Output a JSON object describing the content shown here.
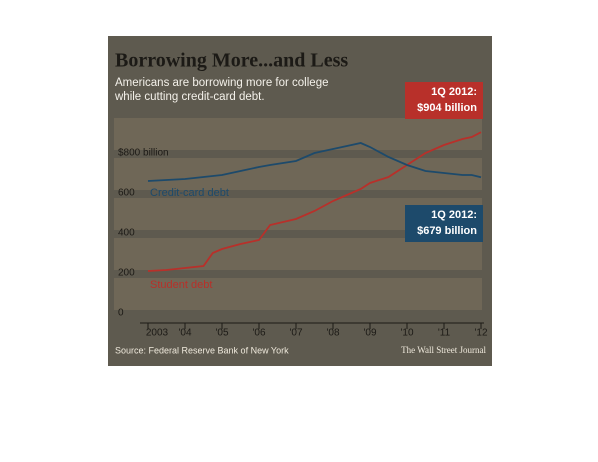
{
  "chart_data": {
    "type": "line",
    "title": "Borrowing More...and Less",
    "subtitle": "Americans are borrowing more for college while cutting credit-card debt.",
    "x": [
      2003,
      2003.5,
      2004,
      2004.5,
      2004.75,
      2005,
      2005.5,
      2006,
      2006.3,
      2007,
      2007.5,
      2008,
      2008.5,
      2008.75,
      2009,
      2009.5,
      2010,
      2010.5,
      2011,
      2011.5,
      2011.75,
      2012
    ],
    "series": [
      {
        "name": "Student debt",
        "color": "#b8302a",
        "values": [
          210,
          215,
          225,
          235,
          300,
          320,
          345,
          365,
          440,
          470,
          510,
          560,
          600,
          620,
          650,
          680,
          740,
          800,
          840,
          870,
          880,
          904
        ]
      },
      {
        "name": "Credit-card debt",
        "color": "#1d4a6b",
        "values": [
          660,
          665,
          670,
          680,
          685,
          690,
          710,
          730,
          740,
          760,
          800,
          820,
          840,
          850,
          830,
          780,
          740,
          710,
          700,
          690,
          690,
          679
        ]
      }
    ],
    "xlim": [
      2003,
      2012
    ],
    "xticks": [
      {
        "value": 2003,
        "label": "2003"
      },
      {
        "value": 2004,
        "label": "'04"
      },
      {
        "value": 2005,
        "label": "'05"
      },
      {
        "value": 2006,
        "label": "'06"
      },
      {
        "value": 2007,
        "label": "'07"
      },
      {
        "value": 2008,
        "label": "'08"
      },
      {
        "value": 2009,
        "label": "'09"
      },
      {
        "value": 2010,
        "label": "'10"
      },
      {
        "value": 2011,
        "label": "'11"
      },
      {
        "value": 2012,
        "label": "'12"
      }
    ],
    "ylim": [
      0,
      950
    ],
    "yticks": [
      0,
      200,
      400,
      600,
      {
        "value": 800,
        "label": "$800 billion"
      }
    ],
    "annotations": [
      {
        "lines": [
          "1Q 2012:",
          "$904 billion"
        ],
        "color": "#b8302a"
      },
      {
        "lines": [
          "1Q 2012:",
          "$679 billion"
        ],
        "color": "#1d4a6b"
      }
    ],
    "source": "Source: Federal Reserve Bank of New York",
    "credit": "The Wall Street Journal"
  }
}
